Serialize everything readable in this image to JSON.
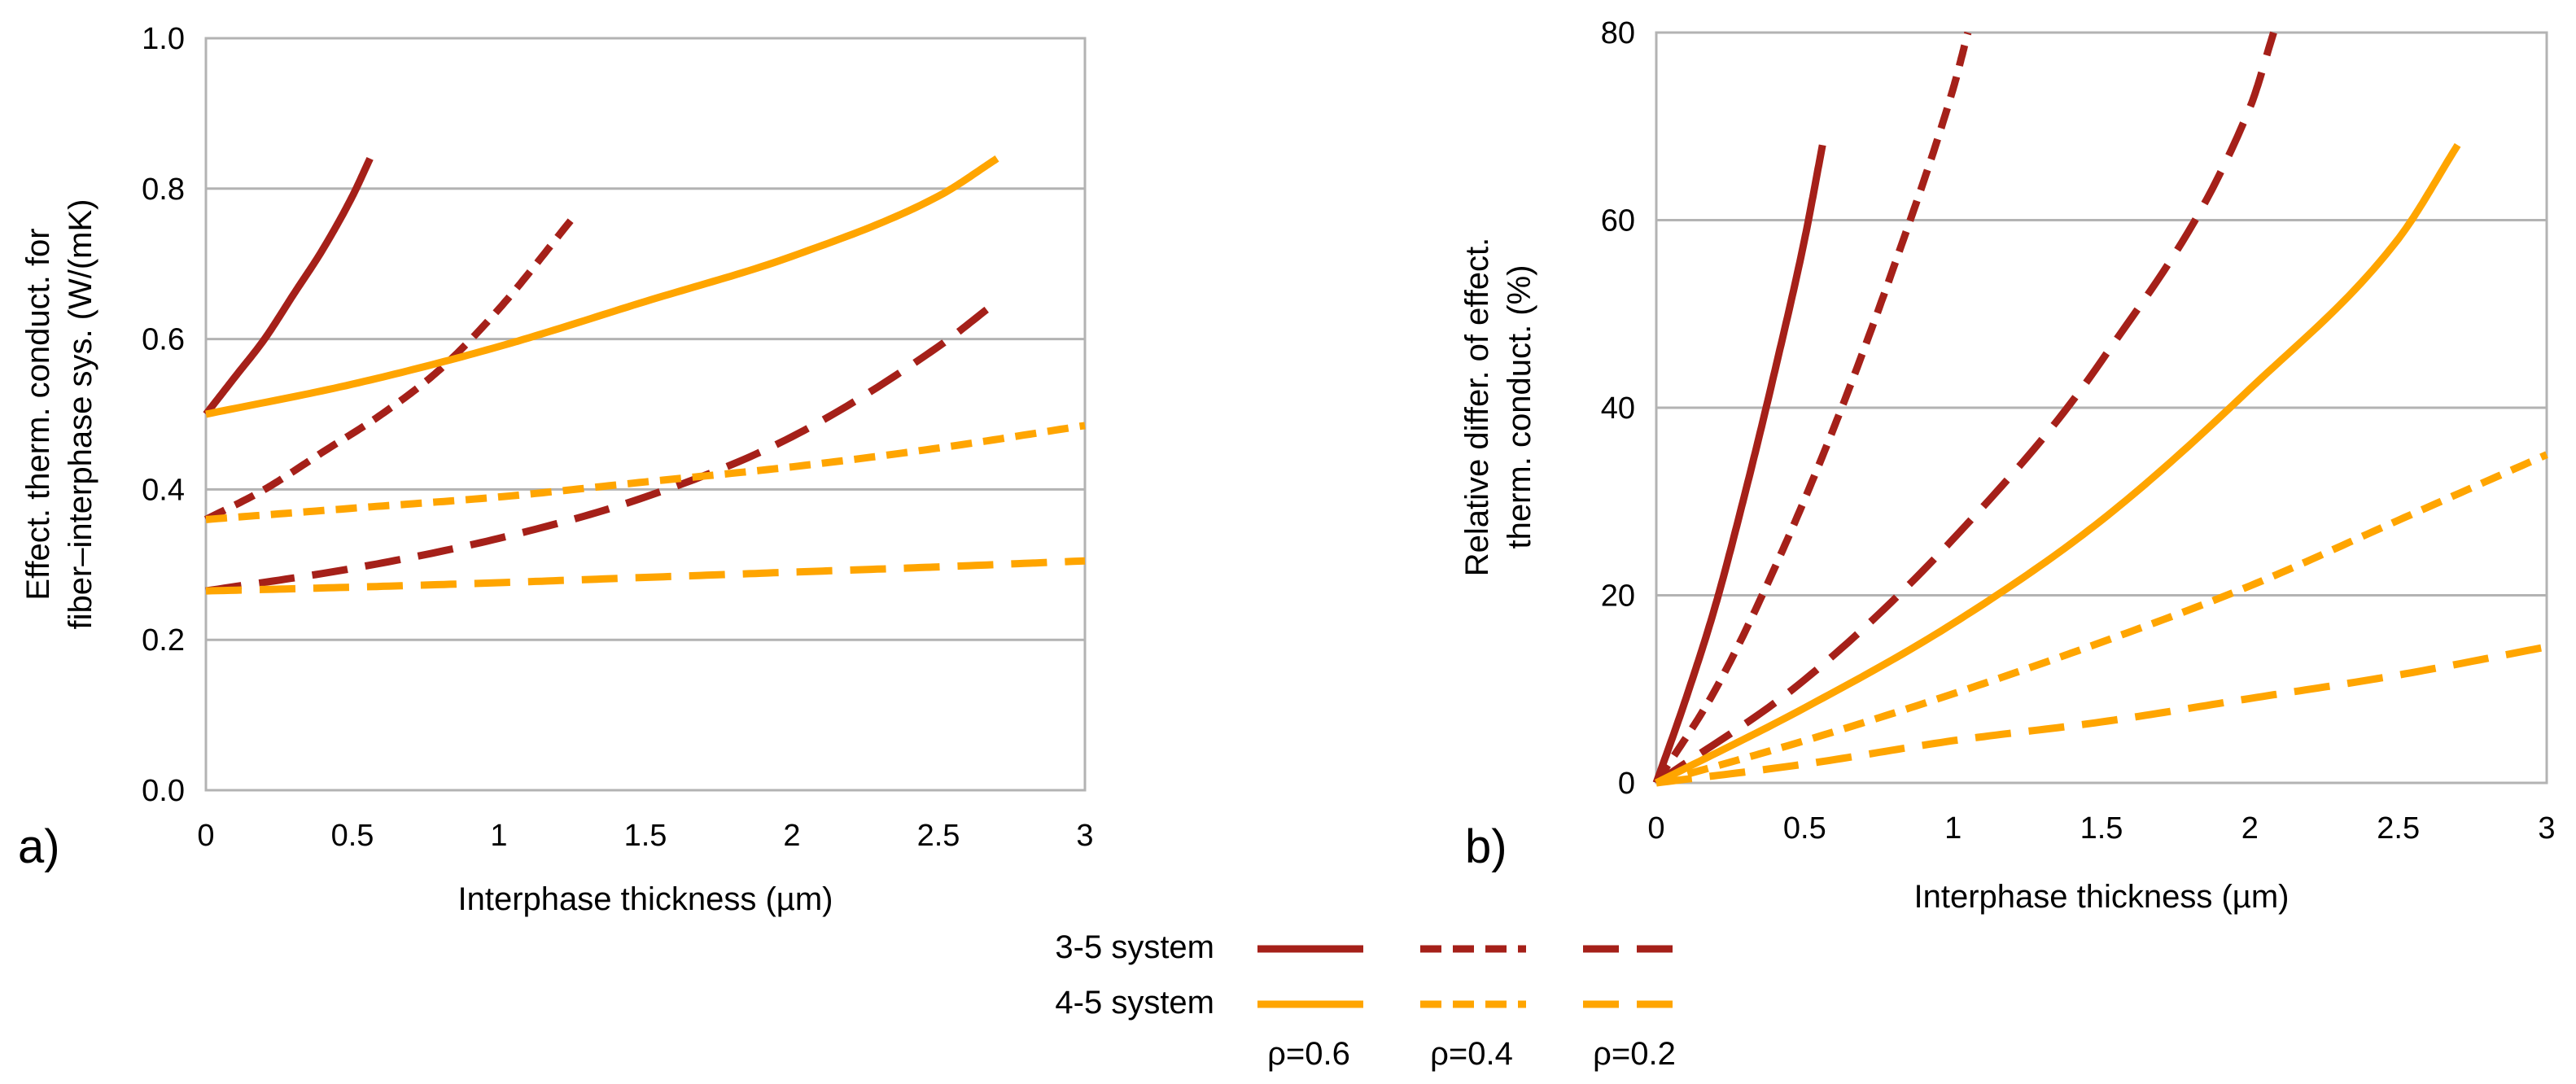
{
  "chart_data": [
    {
      "type": "line",
      "panel_label": "a)",
      "xlabel": "Interphase thickness (µm)",
      "ylabel_lines": [
        "Effect. therm. conduct. for",
        "fiber–interphase sys. (W/(mK)"
      ],
      "xlim": [
        0,
        3
      ],
      "ylim": [
        0,
        1
      ],
      "xticks": [
        0,
        0.5,
        1,
        1.5,
        2,
        2.5,
        3
      ],
      "xtick_labels": [
        "0",
        "0.5",
        "1",
        "1.5",
        "2",
        "2.5",
        "3"
      ],
      "yticks": [
        0,
        0.2,
        0.4,
        0.6,
        0.8,
        1.0
      ],
      "ytick_labels": [
        "0.0",
        "0.2",
        "0.4",
        "0.6",
        "0.8",
        "1.0"
      ],
      "grid": true,
      "series": [
        {
          "name": "3-5 system ρ=0.6",
          "color": "#a52019",
          "dash": "solid",
          "x": [
            0,
            0.1,
            0.2,
            0.3,
            0.4,
            0.5,
            0.56
          ],
          "y": [
            0.5,
            0.55,
            0.6,
            0.66,
            0.72,
            0.79,
            0.84
          ]
        },
        {
          "name": "3-5 system ρ=0.4",
          "color": "#a52019",
          "dash": "dashdot",
          "x": [
            0,
            0.2,
            0.4,
            0.6,
            0.8,
            1.0,
            1.25
          ],
          "y": [
            0.36,
            0.4,
            0.45,
            0.5,
            0.56,
            0.64,
            0.76
          ]
        },
        {
          "name": "3-5 system ρ=0.2",
          "color": "#a52019",
          "dash": "dash",
          "x": [
            0,
            0.5,
            1.0,
            1.5,
            2.0,
            2.5,
            2.7
          ],
          "y": [
            0.265,
            0.295,
            0.335,
            0.39,
            0.47,
            0.59,
            0.65
          ]
        },
        {
          "name": "4-5 system ρ=0.6",
          "color": "#ffa500",
          "dash": "solid",
          "x": [
            0,
            0.5,
            1.0,
            1.5,
            2.0,
            2.5,
            2.7
          ],
          "y": [
            0.5,
            0.54,
            0.59,
            0.65,
            0.71,
            0.79,
            0.84
          ]
        },
        {
          "name": "4-5 system ρ=0.4",
          "color": "#ffa500",
          "dash": "dashdot",
          "x": [
            0,
            0.5,
            1.0,
            1.5,
            2.0,
            2.5,
            3.0
          ],
          "y": [
            0.36,
            0.375,
            0.39,
            0.41,
            0.43,
            0.455,
            0.485
          ]
        },
        {
          "name": "4-5 system ρ=0.2",
          "color": "#ffa500",
          "dash": "dash",
          "x": [
            0,
            0.5,
            1.0,
            1.5,
            2.0,
            2.5,
            3.0
          ],
          "y": [
            0.265,
            0.27,
            0.276,
            0.283,
            0.29,
            0.297,
            0.305
          ]
        }
      ]
    },
    {
      "type": "line",
      "panel_label": "b)",
      "xlabel": "Interphase thickness (µm)",
      "ylabel_lines": [
        "Relative differ. of effect.",
        "therm. conduct. (%)"
      ],
      "xlim": [
        0,
        3
      ],
      "ylim": [
        0,
        80
      ],
      "xticks": [
        0,
        0.5,
        1,
        1.5,
        2,
        2.5,
        3
      ],
      "xtick_labels": [
        "0",
        "0.5",
        "1",
        "1.5",
        "2",
        "2.5",
        "3"
      ],
      "yticks": [
        0,
        20,
        40,
        60,
        80
      ],
      "ytick_labels": [
        "0",
        "20",
        "40",
        "60",
        "80"
      ],
      "grid": true,
      "series": [
        {
          "name": "3-5 system ρ=0.6",
          "color": "#a52019",
          "dash": "solid",
          "x": [
            0,
            0.1,
            0.2,
            0.3,
            0.4,
            0.5,
            0.56
          ],
          "y": [
            0,
            9,
            19,
            31,
            44,
            58,
            68
          ]
        },
        {
          "name": "3-5 system ρ=0.4",
          "color": "#a52019",
          "dash": "dashdot",
          "x": [
            0,
            0.2,
            0.4,
            0.6,
            0.8,
            1.0,
            1.05
          ],
          "y": [
            0,
            10,
            23,
            38,
            55,
            74,
            80
          ]
        },
        {
          "name": "3-5 system ρ=0.2",
          "color": "#a52019",
          "dash": "dash",
          "x": [
            0,
            0.5,
            1.0,
            1.5,
            2.0,
            2.08
          ],
          "y": [
            0,
            11,
            26,
            45,
            72,
            80
          ]
        },
        {
          "name": "4-5 system ρ=0.6",
          "color": "#ffa500",
          "dash": "solid",
          "x": [
            0,
            0.5,
            1.0,
            1.5,
            2.0,
            2.5,
            2.7
          ],
          "y": [
            0,
            8,
            17,
            28,
            42,
            58,
            68
          ]
        },
        {
          "name": "4-5 system ρ=0.4",
          "color": "#ffa500",
          "dash": "dashdot",
          "x": [
            0,
            0.5,
            1.0,
            1.5,
            2.0,
            2.5,
            3.0
          ],
          "y": [
            0,
            4.5,
            9.5,
            15,
            21,
            28,
            35
          ]
        },
        {
          "name": "4-5 system ρ=0.2",
          "color": "#ffa500",
          "dash": "dash",
          "x": [
            0,
            0.5,
            1.0,
            1.5,
            2.0,
            2.5,
            3.0
          ],
          "y": [
            0,
            2,
            4.5,
            6.5,
            9,
            11.5,
            14.5
          ]
        }
      ]
    }
  ],
  "legend": {
    "rows": [
      {
        "label": "3-5 system",
        "color": "#a52019"
      },
      {
        "label": "4-5 system",
        "color": "#ffa500"
      }
    ],
    "columns": [
      {
        "label": "ρ=0.6",
        "dash": "solid"
      },
      {
        "label": "ρ=0.4",
        "dash": "dashdot"
      },
      {
        "label": "ρ=0.2",
        "dash": "dash"
      }
    ]
  }
}
